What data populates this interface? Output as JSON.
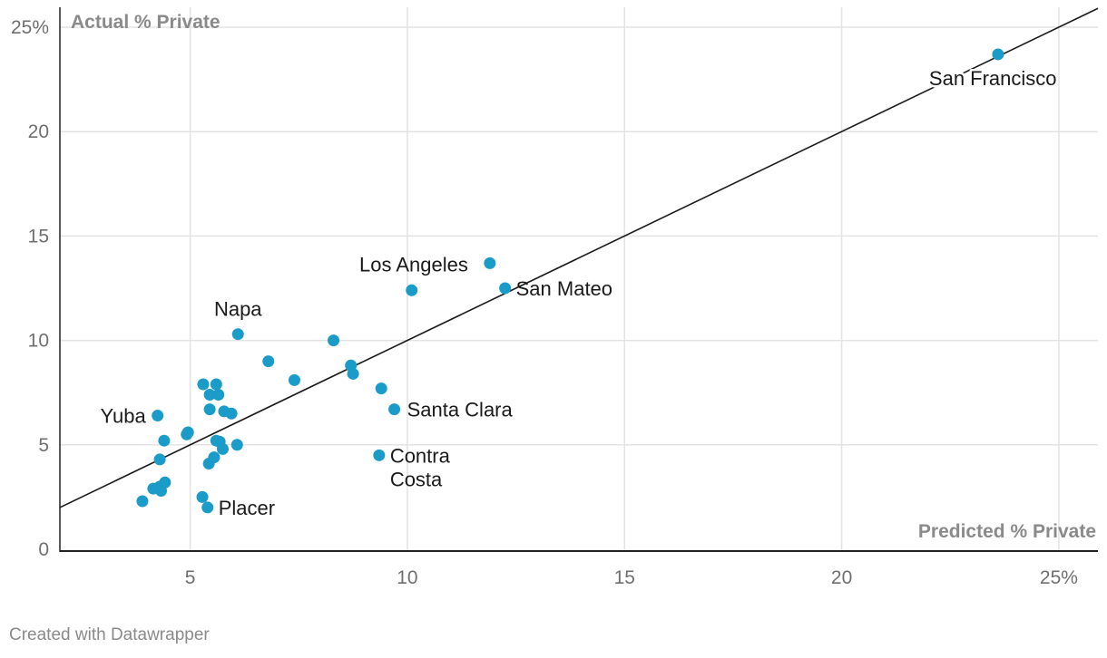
{
  "chart_data": {
    "type": "scatter",
    "xlabel": "Predicted % Private",
    "ylabel": "Actual % Private",
    "xlim": [
      2,
      25.9
    ],
    "ylim": [
      0,
      25
    ],
    "x_ticks": [
      {
        "value": 5,
        "label": "5"
      },
      {
        "value": 10,
        "label": "10"
      },
      {
        "value": 15,
        "label": "15"
      },
      {
        "value": 20,
        "label": "20"
      },
      {
        "value": 25,
        "label": "25%"
      }
    ],
    "y_ticks": [
      {
        "value": 0,
        "label": "0"
      },
      {
        "value": 5,
        "label": "5"
      },
      {
        "value": 10,
        "label": "10"
      },
      {
        "value": 15,
        "label": "15"
      },
      {
        "value": 20,
        "label": "20"
      },
      {
        "value": 25,
        "label": "25%"
      }
    ],
    "reference_line": {
      "type": "y=x",
      "from": [
        2,
        2
      ],
      "to": [
        25.9,
        25.9
      ]
    },
    "point_color": "#1b9cc8",
    "points": [
      {
        "x": 23.6,
        "y": 23.7,
        "label": "San Francisco"
      },
      {
        "x": 11.9,
        "y": 13.7,
        "label": "Los Angeles"
      },
      {
        "x": 12.25,
        "y": 12.5,
        "label": "San Mateo"
      },
      {
        "x": 10.1,
        "y": 12.4
      },
      {
        "x": 6.1,
        "y": 10.3,
        "label": "Napa"
      },
      {
        "x": 8.3,
        "y": 10.0
      },
      {
        "x": 6.8,
        "y": 9.0
      },
      {
        "x": 8.7,
        "y": 8.8
      },
      {
        "x": 8.75,
        "y": 8.4
      },
      {
        "x": 7.4,
        "y": 8.1
      },
      {
        "x": 9.4,
        "y": 7.7
      },
      {
        "x": 9.7,
        "y": 6.7,
        "label": "Santa Clara"
      },
      {
        "x": 9.35,
        "y": 4.5,
        "label": "Contra Costa",
        "label_lines": [
          "Contra",
          "Costa"
        ]
      },
      {
        "x": 4.25,
        "y": 6.4,
        "label": "Yuba"
      },
      {
        "x": 5.3,
        "y": 7.9
      },
      {
        "x": 5.6,
        "y": 7.9
      },
      {
        "x": 5.45,
        "y": 7.4
      },
      {
        "x": 5.65,
        "y": 7.4
      },
      {
        "x": 5.45,
        "y": 6.7
      },
      {
        "x": 5.78,
        "y": 6.6
      },
      {
        "x": 5.95,
        "y": 6.5
      },
      {
        "x": 4.95,
        "y": 5.6
      },
      {
        "x": 4.92,
        "y": 5.5
      },
      {
        "x": 4.4,
        "y": 5.2
      },
      {
        "x": 5.6,
        "y": 5.2
      },
      {
        "x": 5.68,
        "y": 5.15
      },
      {
        "x": 6.08,
        "y": 5.0
      },
      {
        "x": 5.75,
        "y": 4.8
      },
      {
        "x": 5.55,
        "y": 4.4
      },
      {
        "x": 5.43,
        "y": 4.1
      },
      {
        "x": 4.3,
        "y": 4.3
      },
      {
        "x": 4.42,
        "y": 3.2
      },
      {
        "x": 4.3,
        "y": 3.0
      },
      {
        "x": 4.15,
        "y": 2.9
      },
      {
        "x": 4.33,
        "y": 2.8
      },
      {
        "x": 3.9,
        "y": 2.3
      },
      {
        "x": 5.28,
        "y": 2.5
      },
      {
        "x": 5.4,
        "y": 2.0,
        "label": "Placer"
      }
    ]
  },
  "footer": {
    "credit": "Created with Datawrapper"
  }
}
